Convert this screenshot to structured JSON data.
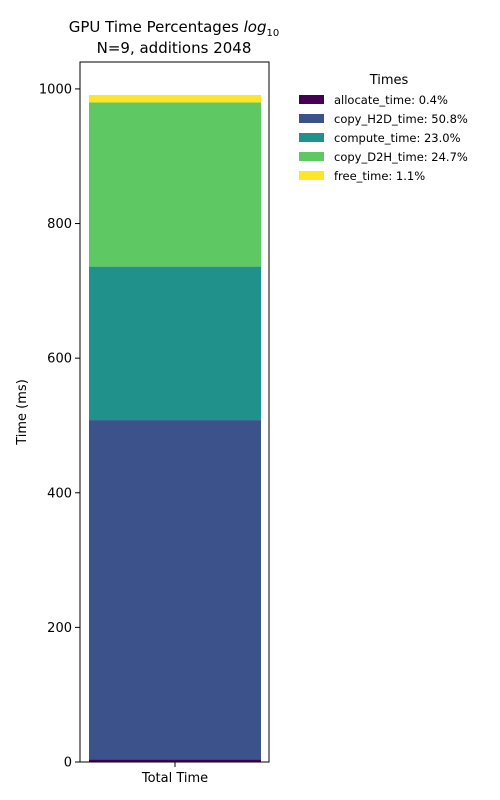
{
  "chart_data": {
    "type": "bar",
    "stacked": true,
    "title": "GPU Time Percentages log10",
    "title_parts": {
      "line1_prefix": "GPU Time Percentages ",
      "line1_math": "log",
      "line1_math_sub": "10",
      "line2": "N=9, additions 2048"
    },
    "categories": [
      "Total Time"
    ],
    "xlabel": "",
    "ylabel": "Time (ms)",
    "ylim": [
      0,
      1040
    ],
    "yticks": [
      0,
      200,
      400,
      600,
      800,
      1000
    ],
    "grid": false,
    "legend": {
      "title": "Times",
      "placement": "outside-top-right"
    },
    "series": [
      {
        "name": "allocate_time",
        "legend_label": "allocate_time: 0.4%",
        "values": [
          4
        ],
        "color": "#440154"
      },
      {
        "name": "copy_H2D_time",
        "legend_label": "copy_H2D_time: 50.8%",
        "values": [
          504
        ],
        "color": "#3b528b"
      },
      {
        "name": "compute_time",
        "legend_label": "compute_time: 23.0%",
        "values": [
          228
        ],
        "color": "#21918c"
      },
      {
        "name": "copy_D2H_time",
        "legend_label": "copy_D2H_time: 24.7%",
        "values": [
          244
        ],
        "color": "#5ec962"
      },
      {
        "name": "free_time",
        "legend_label": "free_time: 1.1%",
        "values": [
          11
        ],
        "color": "#fde725"
      }
    ]
  }
}
